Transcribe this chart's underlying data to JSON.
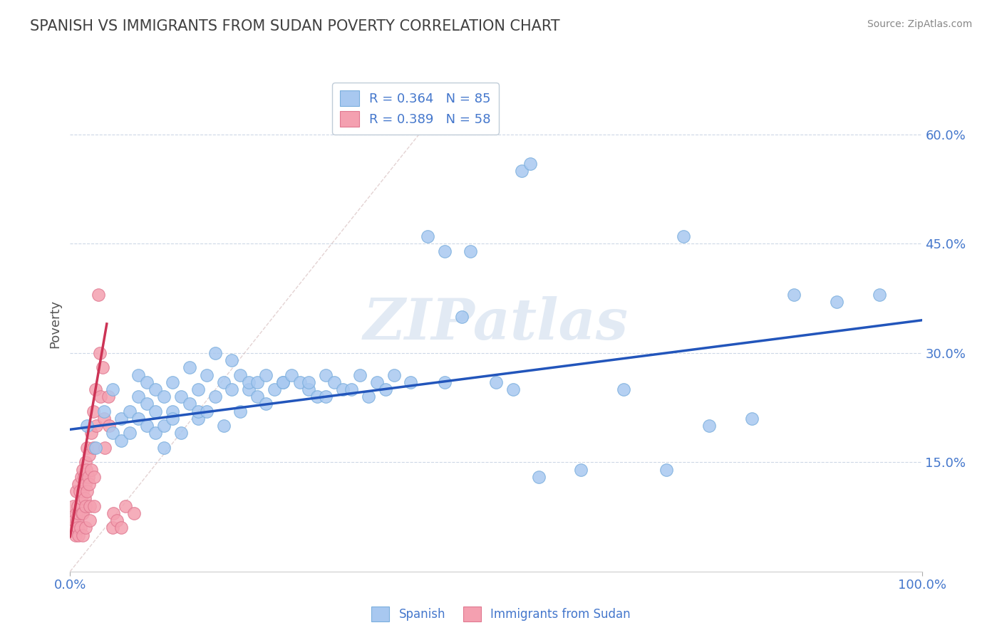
{
  "title": "SPANISH VS IMMIGRANTS FROM SUDAN POVERTY CORRELATION CHART",
  "source": "Source: ZipAtlas.com",
  "ylabel": "Poverty",
  "watermark": "ZIPatlas",
  "xlim": [
    0.0,
    1.0
  ],
  "ylim": [
    0.0,
    0.68
  ],
  "xtick_positions": [
    0.0,
    1.0
  ],
  "xtick_labels": [
    "0.0%",
    "100.0%"
  ],
  "ytick_positions": [
    0.15,
    0.3,
    0.45,
    0.6
  ],
  "ytick_labels": [
    "15.0%",
    "30.0%",
    "45.0%",
    "60.0%"
  ],
  "legend_r_spanish": "R = 0.364",
  "legend_n_spanish": "N = 85",
  "legend_r_sudan": "R = 0.389",
  "legend_n_sudan": "N = 58",
  "spanish_color": "#a8c8f0",
  "spanish_edge_color": "#7aaedd",
  "sudan_color": "#f4a0b0",
  "sudan_edge_color": "#e07890",
  "spanish_line_color": "#2255bb",
  "sudan_line_color": "#cc3355",
  "diag_dash_color": "#d8c0c0",
  "grid_color": "#c8d4e4",
  "background_color": "#ffffff",
  "title_color": "#404040",
  "axis_label_color": "#4477cc",
  "spanish_scatter": [
    [
      0.02,
      0.2
    ],
    [
      0.03,
      0.17
    ],
    [
      0.04,
      0.22
    ],
    [
      0.05,
      0.19
    ],
    [
      0.05,
      0.25
    ],
    [
      0.06,
      0.21
    ],
    [
      0.06,
      0.18
    ],
    [
      0.07,
      0.22
    ],
    [
      0.07,
      0.19
    ],
    [
      0.08,
      0.21
    ],
    [
      0.08,
      0.27
    ],
    [
      0.08,
      0.24
    ],
    [
      0.09,
      0.23
    ],
    [
      0.09,
      0.2
    ],
    [
      0.09,
      0.26
    ],
    [
      0.1,
      0.22
    ],
    [
      0.1,
      0.19
    ],
    [
      0.1,
      0.25
    ],
    [
      0.11,
      0.24
    ],
    [
      0.11,
      0.2
    ],
    [
      0.11,
      0.17
    ],
    [
      0.12,
      0.22
    ],
    [
      0.12,
      0.26
    ],
    [
      0.12,
      0.21
    ],
    [
      0.13,
      0.24
    ],
    [
      0.13,
      0.19
    ],
    [
      0.14,
      0.23
    ],
    [
      0.14,
      0.28
    ],
    [
      0.15,
      0.25
    ],
    [
      0.15,
      0.21
    ],
    [
      0.15,
      0.22
    ],
    [
      0.16,
      0.27
    ],
    [
      0.16,
      0.22
    ],
    [
      0.17,
      0.3
    ],
    [
      0.17,
      0.24
    ],
    [
      0.18,
      0.26
    ],
    [
      0.18,
      0.2
    ],
    [
      0.19,
      0.29
    ],
    [
      0.19,
      0.25
    ],
    [
      0.2,
      0.27
    ],
    [
      0.2,
      0.22
    ],
    [
      0.21,
      0.25
    ],
    [
      0.21,
      0.26
    ],
    [
      0.22,
      0.26
    ],
    [
      0.22,
      0.24
    ],
    [
      0.23,
      0.27
    ],
    [
      0.23,
      0.23
    ],
    [
      0.24,
      0.25
    ],
    [
      0.25,
      0.26
    ],
    [
      0.25,
      0.26
    ],
    [
      0.26,
      0.27
    ],
    [
      0.27,
      0.26
    ],
    [
      0.28,
      0.25
    ],
    [
      0.28,
      0.26
    ],
    [
      0.29,
      0.24
    ],
    [
      0.3,
      0.27
    ],
    [
      0.3,
      0.24
    ],
    [
      0.31,
      0.26
    ],
    [
      0.32,
      0.25
    ],
    [
      0.33,
      0.25
    ],
    [
      0.34,
      0.27
    ],
    [
      0.35,
      0.24
    ],
    [
      0.36,
      0.26
    ],
    [
      0.37,
      0.25
    ],
    [
      0.38,
      0.27
    ],
    [
      0.4,
      0.26
    ],
    [
      0.42,
      0.46
    ],
    [
      0.44,
      0.44
    ],
    [
      0.44,
      0.26
    ],
    [
      0.46,
      0.35
    ],
    [
      0.47,
      0.44
    ],
    [
      0.5,
      0.26
    ],
    [
      0.52,
      0.25
    ],
    [
      0.53,
      0.55
    ],
    [
      0.54,
      0.56
    ],
    [
      0.55,
      0.13
    ],
    [
      0.6,
      0.14
    ],
    [
      0.65,
      0.25
    ],
    [
      0.7,
      0.14
    ],
    [
      0.72,
      0.46
    ],
    [
      0.75,
      0.2
    ],
    [
      0.8,
      0.21
    ],
    [
      0.85,
      0.38
    ],
    [
      0.9,
      0.37
    ],
    [
      0.95,
      0.38
    ]
  ],
  "sudan_scatter": [
    [
      0.003,
      0.06
    ],
    [
      0.004,
      0.09
    ],
    [
      0.005,
      0.07
    ],
    [
      0.006,
      0.05
    ],
    [
      0.007,
      0.08
    ],
    [
      0.007,
      0.11
    ],
    [
      0.008,
      0.07
    ],
    [
      0.009,
      0.09
    ],
    [
      0.009,
      0.06
    ],
    [
      0.01,
      0.12
    ],
    [
      0.01,
      0.08
    ],
    [
      0.01,
      0.05
    ],
    [
      0.011,
      0.11
    ],
    [
      0.012,
      0.09
    ],
    [
      0.012,
      0.06
    ],
    [
      0.013,
      0.13
    ],
    [
      0.013,
      0.1
    ],
    [
      0.014,
      0.08
    ],
    [
      0.015,
      0.14
    ],
    [
      0.015,
      0.11
    ],
    [
      0.015,
      0.08
    ],
    [
      0.015,
      0.05
    ],
    [
      0.016,
      0.13
    ],
    [
      0.017,
      0.1
    ],
    [
      0.018,
      0.15
    ],
    [
      0.018,
      0.12
    ],
    [
      0.018,
      0.09
    ],
    [
      0.018,
      0.06
    ],
    [
      0.019,
      0.14
    ],
    [
      0.02,
      0.11
    ],
    [
      0.02,
      0.17
    ],
    [
      0.021,
      0.13
    ],
    [
      0.022,
      0.16
    ],
    [
      0.022,
      0.12
    ],
    [
      0.023,
      0.09
    ],
    [
      0.023,
      0.07
    ],
    [
      0.025,
      0.19
    ],
    [
      0.025,
      0.14
    ],
    [
      0.027,
      0.22
    ],
    [
      0.027,
      0.17
    ],
    [
      0.028,
      0.13
    ],
    [
      0.028,
      0.09
    ],
    [
      0.03,
      0.25
    ],
    [
      0.031,
      0.2
    ],
    [
      0.033,
      0.38
    ],
    [
      0.035,
      0.3
    ],
    [
      0.036,
      0.24
    ],
    [
      0.038,
      0.28
    ],
    [
      0.04,
      0.21
    ],
    [
      0.041,
      0.17
    ],
    [
      0.045,
      0.24
    ],
    [
      0.046,
      0.2
    ],
    [
      0.05,
      0.06
    ],
    [
      0.051,
      0.08
    ],
    [
      0.055,
      0.07
    ],
    [
      0.06,
      0.06
    ],
    [
      0.065,
      0.09
    ],
    [
      0.075,
      0.08
    ]
  ],
  "spanish_trendline_x": [
    0.0,
    1.0
  ],
  "spanish_trendline_y": [
    0.195,
    0.345
  ],
  "sudan_trendline_x": [
    0.0,
    0.043
  ],
  "sudan_trendline_y": [
    0.048,
    0.34
  ]
}
